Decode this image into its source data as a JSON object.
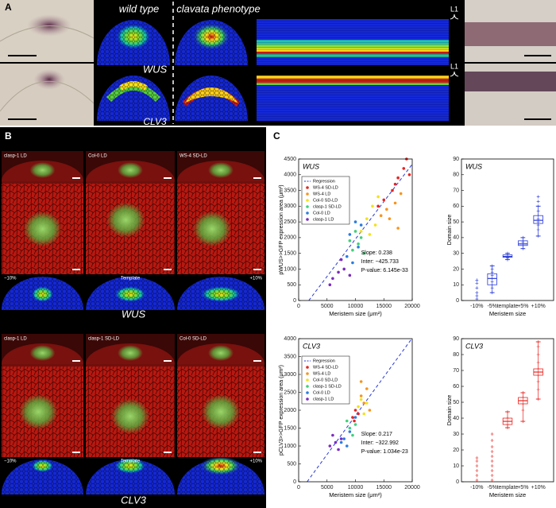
{
  "panel_a": {
    "label": "A",
    "wild_type": "wild type",
    "clavata": "clavata phenotype",
    "wus": "WUS",
    "clv3": "CLV3",
    "l1_top": "L1",
    "l1_bottom": "L1"
  },
  "panel_b": {
    "label": "B",
    "top_columns": [
      "clasp-1 LD",
      "Col-0 LD",
      "WS-4 SD-LD"
    ],
    "top_models": [
      "−10%",
      "Template",
      "+10%"
    ],
    "top_gene": "WUS",
    "bottom_columns": [
      "clasp-1 LD",
      "clasp-1 SD-LD",
      "Col-0 SD-LD"
    ],
    "bottom_models": [
      "−10%",
      "Template",
      "+10%"
    ],
    "bottom_gene": "CLV3"
  },
  "panel_c": {
    "label": "C"
  },
  "chart_data": [
    {
      "type": "scatter",
      "title": "WUS",
      "x_label": "Meristem size (μm²)",
      "y_label": "pWUS>>GFP expression area (μm²)",
      "xlim": [
        0,
        20000
      ],
      "xticks": [
        0,
        5000,
        10000,
        15000,
        20000
      ],
      "ylim": [
        0,
        4500
      ],
      "yticks": [
        0,
        500,
        1000,
        1500,
        2000,
        2500,
        3000,
        3500,
        4000,
        4500
      ],
      "regression": {
        "name": "Regression",
        "slope": 0.238,
        "intercept": -425.733,
        "color": "#2a3ad8"
      },
      "annotations": [
        "Slope: 0.238",
        "Inter: −425.733",
        "P-value: 6.145e-33"
      ],
      "legend": "upper left",
      "series": [
        {
          "name": "WS-4 SD-LD",
          "color": "#e8231f",
          "x": [
            14000,
            15000,
            16500,
            17000,
            17500,
            18500,
            19000,
            19500
          ],
          "values": [
            3000,
            3200,
            3500,
            3700,
            3900,
            4200,
            4500,
            4000
          ]
        },
        {
          "name": "WS-4 LD",
          "color": "#f7941d",
          "x": [
            14500,
            15500,
            16000,
            17000,
            17500,
            18000
          ],
          "values": [
            2700,
            2900,
            2600,
            3100,
            2300,
            3400
          ]
        },
        {
          "name": "Col-0 SD-LD",
          "color": "#f3e21b",
          "x": [
            11000,
            12000,
            12500,
            13000,
            13500,
            14000
          ],
          "values": [
            2200,
            2600,
            2100,
            3000,
            2400,
            3300
          ]
        },
        {
          "name": "clasp-1 SD-LD",
          "color": "#3fd07a",
          "x": [
            9000,
            9500,
            10000,
            10500,
            11000,
            11500
          ],
          "values": [
            1900,
            1600,
            2200,
            1800,
            2000,
            1500
          ]
        },
        {
          "name": "Col-0 LD",
          "color": "#2a7de1",
          "x": [
            8500,
            9000,
            9500,
            10000,
            10500,
            11000
          ],
          "values": [
            1400,
            2100,
            1200,
            2500,
            1700,
            2400
          ]
        },
        {
          "name": "clasp-1 LD",
          "color": "#7b2bbf",
          "x": [
            5500,
            6000,
            7000,
            7500,
            8000,
            9000
          ],
          "values": [
            500,
            700,
            900,
            1300,
            1000,
            800
          ]
        }
      ]
    },
    {
      "type": "box",
      "title": "WUS",
      "x_label": "Meristem size",
      "y_label": "Domain size",
      "color": "#2a3ad8",
      "categories": [
        "-10%",
        "-5%",
        "template",
        "+5%",
        "+10%"
      ],
      "ylim": [
        0,
        90
      ],
      "yticks": [
        0,
        10,
        20,
        30,
        40,
        50,
        60,
        70,
        80,
        90
      ],
      "whisker_low": [
        null,
        5,
        26,
        33,
        41
      ],
      "q1": [
        null,
        10,
        27.5,
        35,
        49
      ],
      "median": [
        null,
        14,
        28,
        36,
        51
      ],
      "q3": [
        null,
        17,
        29,
        38,
        54
      ],
      "whisker_high": [
        null,
        22,
        30,
        40,
        60
      ],
      "points": [
        [
          1,
          3,
          5,
          8,
          11,
          13
        ],
        [
          5,
          8,
          10,
          12,
          14,
          16,
          18,
          20,
          22
        ],
        [
          26,
          27,
          28,
          29,
          30
        ],
        [
          33,
          35,
          36,
          37,
          38,
          40
        ],
        [
          41,
          45,
          48,
          50,
          52,
          54,
          57,
          60,
          63,
          66
        ]
      ]
    },
    {
      "type": "scatter",
      "title": "CLV3",
      "x_label": "Meristem size (μm²)",
      "y_label": "pCLV3>>GFP expression area (μm²)",
      "xlim": [
        0,
        20000
      ],
      "xticks": [
        0,
        5000,
        10000,
        15000,
        20000
      ],
      "ylim": [
        0,
        4000
      ],
      "yticks": [
        0,
        500,
        1000,
        1500,
        2000,
        2500,
        3000,
        3500,
        4000
      ],
      "regression": {
        "name": "Regression",
        "slope": 0.217,
        "intercept": -322.992,
        "color": "#2a3ad8"
      },
      "annotations": [
        "Slope: 0.217",
        "Inter: −322.992",
        "P-value: 1.034e-23"
      ],
      "legend": "upper left",
      "series": [
        {
          "name": "WS-4 SD-LD",
          "color": "#e8231f",
          "x": [
            9500,
            9800,
            10000,
            10500
          ],
          "values": [
            1800,
            1700,
            2000,
            1900
          ]
        },
        {
          "name": "WS-4 LD",
          "color": "#f7941d",
          "x": [
            11000,
            11000,
            11500,
            12000,
            12500
          ],
          "values": [
            2400,
            2800,
            2200,
            2600,
            2000
          ]
        },
        {
          "name": "Col-0 SD-LD",
          "color": "#f3e21b",
          "x": [
            10500,
            11000,
            11500,
            12000
          ],
          "values": [
            2100,
            2300,
            1900,
            2200
          ]
        },
        {
          "name": "clasp-1 SD-LD",
          "color": "#3fd07a",
          "x": [
            8500,
            9000,
            9500,
            10000
          ],
          "values": [
            1700,
            1500,
            1300,
            1600
          ]
        },
        {
          "name": "Col-0 LD",
          "color": "#2a7de1",
          "x": [
            7500,
            8000,
            8500,
            9000,
            10000
          ],
          "values": [
            1100,
            1200,
            1000,
            1400,
            1800
          ]
        },
        {
          "name": "clasp-1 LD",
          "color": "#7b2bbf",
          "x": [
            5500,
            6000,
            6500,
            7000,
            7500
          ],
          "values": [
            1000,
            1300,
            1100,
            900,
            1200
          ]
        }
      ]
    },
    {
      "type": "box",
      "title": "CLV3",
      "x_label": "Meristem size",
      "y_label": "Domain size",
      "color": "#e8231f",
      "categories": [
        "-10%",
        "-5%",
        "template",
        "+5%",
        "+10%"
      ],
      "ylim": [
        0,
        90
      ],
      "yticks": [
        0,
        10,
        20,
        30,
        40,
        50,
        60,
        70,
        80,
        90
      ],
      "whisker_low": [
        null,
        null,
        34,
        38,
        52
      ],
      "q1": [
        null,
        null,
        36,
        49,
        67
      ],
      "median": [
        null,
        null,
        38,
        51,
        69
      ],
      "q3": [
        null,
        null,
        40,
        53,
        71
      ],
      "whisker_high": [
        null,
        null,
        44,
        56,
        88
      ],
      "points": [
        [
          1,
          4,
          7,
          10,
          13,
          15
        ],
        [
          1,
          4,
          7,
          10,
          13,
          16,
          19,
          22,
          26,
          30
        ],
        [
          34,
          36,
          38,
          40,
          44
        ],
        [
          38,
          45,
          49,
          51,
          53,
          56
        ],
        [
          52,
          58,
          63,
          67,
          69,
          71,
          75,
          80,
          85,
          88
        ]
      ]
    }
  ]
}
